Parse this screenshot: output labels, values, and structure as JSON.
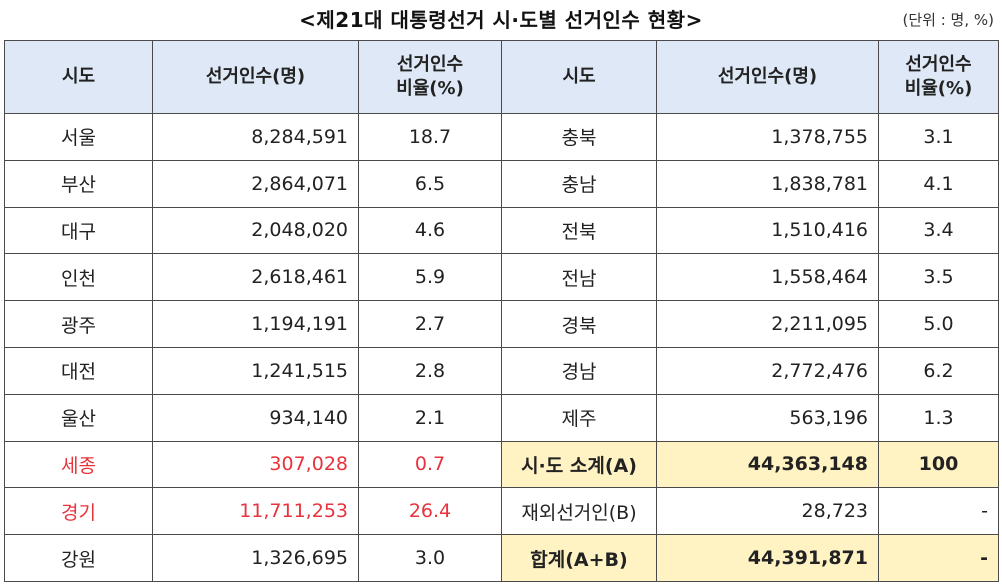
{
  "title": "<제21대 대통령선거 시·도별 선거인수 현황>",
  "unit": "(단위 : 명, %)",
  "headers": {
    "region": "시도",
    "voters": "선거인수(명)",
    "ratio_line1": "선거인수",
    "ratio_line2": "비율(%)"
  },
  "left_rows": [
    {
      "region": "서울",
      "voters": "8,284,591",
      "ratio": "18.7"
    },
    {
      "region": "부산",
      "voters": "2,864,071",
      "ratio": "6.5"
    },
    {
      "region": "대구",
      "voters": "2,048,020",
      "ratio": "4.6"
    },
    {
      "region": "인천",
      "voters": "2,618,461",
      "ratio": "5.9"
    },
    {
      "region": "광주",
      "voters": "1,194,191",
      "ratio": "2.7"
    },
    {
      "region": "대전",
      "voters": "1,241,515",
      "ratio": "2.8"
    },
    {
      "region": "울산",
      "voters": "934,140",
      "ratio": "2.1"
    },
    {
      "region": "세종",
      "voters": "307,028",
      "ratio": "0.7"
    },
    {
      "region": "경기",
      "voters": "11,711,253",
      "ratio": "26.4"
    },
    {
      "region": "강원",
      "voters": "1,326,695",
      "ratio": "3.0"
    }
  ],
  "right_rows": [
    {
      "region": "충북",
      "voters": "1,378,755",
      "ratio": "3.1"
    },
    {
      "region": "충남",
      "voters": "1,838,781",
      "ratio": "4.1"
    },
    {
      "region": "전북",
      "voters": "1,510,416",
      "ratio": "3.4"
    },
    {
      "region": "전남",
      "voters": "1,558,464",
      "ratio": "3.5"
    },
    {
      "region": "경북",
      "voters": "2,211,095",
      "ratio": "5.0"
    },
    {
      "region": "경남",
      "voters": "2,772,476",
      "ratio": "6.2"
    },
    {
      "region": "제주",
      "voters": "563,196",
      "ratio": "1.3"
    },
    {
      "region": "시·도 소계(A)",
      "voters": "44,363,148",
      "ratio": "100"
    },
    {
      "region": "재외선거인(B)",
      "voters": "28,723",
      "ratio": "-"
    },
    {
      "region": "합계(A+B)",
      "voters": "44,391,871",
      "ratio": "-"
    }
  ],
  "colors": {
    "header_bg": "#dfe8f6",
    "highlight_bg": "#fff3c4",
    "red_text": "#e8323c"
  }
}
